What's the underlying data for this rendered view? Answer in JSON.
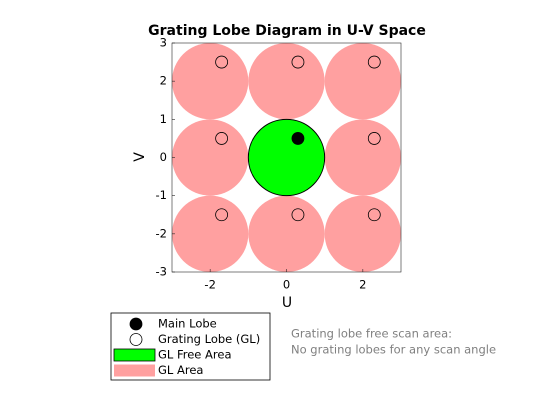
{
  "chart_data": {
    "type": "scatter",
    "title": "Grating Lobe Diagram in U-V Space",
    "x_label": "U",
    "y_label": "V",
    "xlim": [
      -3,
      3
    ],
    "ylim": [
      -3,
      3
    ],
    "xticks": [
      -2,
      0,
      2
    ],
    "yticks": [
      -3,
      -2,
      -1,
      0,
      1,
      2,
      3
    ],
    "series": [
      {
        "name": "Main Lobe",
        "color": "#000000",
        "marker": "filled",
        "x": [
          0.3
        ],
        "y": [
          0.5
        ]
      },
      {
        "name": "Grating Lobe (GL)",
        "color": "#000000",
        "marker": "open",
        "x": [
          -1.7,
          0.3,
          2.3,
          -1.7,
          2.3,
          -1.7,
          0.3,
          2.3
        ],
        "y": [
          2.5,
          2.5,
          2.5,
          0.5,
          0.5,
          -1.5,
          -1.5,
          -1.5
        ]
      },
      {
        "name": "GL Free Area",
        "color": "#00ff00",
        "marker": "area",
        "radius": 1,
        "x": [
          0
        ],
        "y": [
          0
        ]
      },
      {
        "name": "GL Area",
        "color": "#ffa0a0",
        "marker": "area",
        "radius": 1,
        "x": [
          -2,
          0,
          2,
          -2,
          2,
          -2,
          0,
          2
        ],
        "y": [
          2,
          2,
          2,
          0,
          0,
          -2,
          -2,
          -2
        ]
      }
    ],
    "annotation": [
      "Grating lobe free scan area:",
      "No grating lobes for any scan angle"
    ]
  }
}
